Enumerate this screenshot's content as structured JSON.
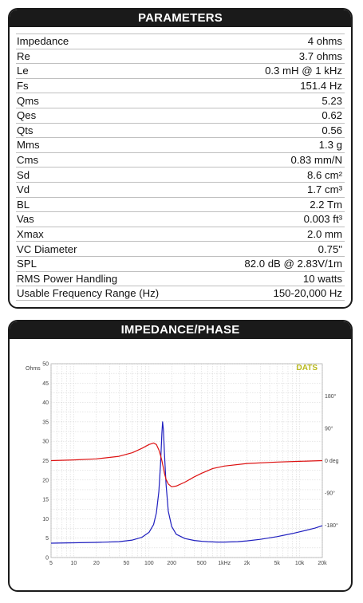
{
  "parameters": {
    "title": "PARAMETERS",
    "rows": [
      {
        "label": "Impedance",
        "value": "4 ohms"
      },
      {
        "label": "Re",
        "value": "3.7 ohms"
      },
      {
        "label": "Le",
        "value": "0.3 mH @ 1 kHz"
      },
      {
        "label": "Fs",
        "value": "151.4 Hz"
      },
      {
        "label": "Qms",
        "value": "5.23"
      },
      {
        "label": "Qes",
        "value": "0.62"
      },
      {
        "label": "Qts",
        "value": "0.56"
      },
      {
        "label": "Mms",
        "value": "1.3 g"
      },
      {
        "label": "Cms",
        "value": "0.83 mm/N"
      },
      {
        "label": "Sd",
        "value": "8.6 cm²"
      },
      {
        "label": "Vd",
        "value": "1.7 cm³"
      },
      {
        "label": "BL",
        "value": "2.2 Tm"
      },
      {
        "label": "Vas",
        "value": "0.003 ft³"
      },
      {
        "label": "Xmax",
        "value": "2.0 mm"
      },
      {
        "label": "VC Diameter",
        "value": "0.75\""
      },
      {
        "label": "SPL",
        "value": "82.0 dB @ 2.83V/1m"
      },
      {
        "label": "RMS Power Handling",
        "value": "10 watts"
      },
      {
        "label": "Usable Frequency Range (Hz)",
        "value": "150-20,000 Hz"
      }
    ]
  },
  "impedance_panel": {
    "title": "IMPEDANCE/PHASE",
    "brand": "DATS"
  },
  "colors": {
    "impedance": "#1f1fbf",
    "phase": "#dd1111",
    "brand": "#b8b81a",
    "header": "#1a1a1a"
  },
  "chart_data": {
    "type": "line",
    "title": "",
    "xlabel": "",
    "x_scale": "log",
    "xlim": [
      5,
      20000
    ],
    "x_ticks": [
      5,
      10,
      20,
      50,
      100,
      200,
      500,
      1000,
      2000,
      5000,
      10000,
      20000
    ],
    "x_tick_labels": [
      "5",
      "10",
      "20",
      "50",
      "100",
      "200",
      "500",
      "1kHz",
      "2k",
      "5k",
      "10k",
      "20k"
    ],
    "y_left": {
      "label": "Ohms",
      "lim": [
        0,
        50
      ],
      "ticks": [
        0,
        5,
        10,
        15,
        20,
        25,
        30,
        35,
        40,
        45,
        50
      ]
    },
    "y_right": {
      "lim": [
        -270,
        270
      ],
      "ticks": [
        180,
        90,
        0,
        -90,
        -180
      ],
      "tick_labels": [
        "180°",
        "90°",
        "0 deg",
        "-90°",
        "-180°"
      ]
    },
    "grid": true,
    "series": [
      {
        "axis": "left",
        "x": [
          5,
          10,
          20,
          40,
          60,
          80,
          100,
          115,
          125,
          135,
          142,
          148,
          151.4,
          155,
          160,
          168,
          180,
          200,
          230,
          300,
          400,
          500,
          600,
          800,
          1000,
          1500,
          2000,
          3000,
          5000,
          8000,
          12000,
          16000,
          20000
        ],
        "values": [
          3.7,
          3.8,
          3.9,
          4.1,
          4.5,
          5.2,
          6.5,
          8.5,
          11.5,
          17,
          24,
          32,
          35,
          33,
          27,
          19,
          12,
          8,
          6,
          4.9,
          4.4,
          4.2,
          4.1,
          4.0,
          4.0,
          4.1,
          4.3,
          4.7,
          5.4,
          6.2,
          7.0,
          7.6,
          8.2
        ]
      },
      {
        "axis": "right",
        "x": [
          5,
          10,
          20,
          40,
          60,
          80,
          100,
          115,
          125,
          135,
          142,
          148,
          151.4,
          155,
          160,
          168,
          180,
          200,
          230,
          300,
          400,
          500,
          700,
          1000,
          2000,
          5000,
          10000,
          20000
        ],
        "values": [
          0,
          2,
          5,
          12,
          22,
          34,
          45,
          49,
          45,
          30,
          15,
          0,
          -10,
          -20,
          -35,
          -52,
          -65,
          -73,
          -71,
          -60,
          -45,
          -35,
          -22,
          -15,
          -8,
          -4,
          -2,
          0
        ]
      }
    ]
  }
}
